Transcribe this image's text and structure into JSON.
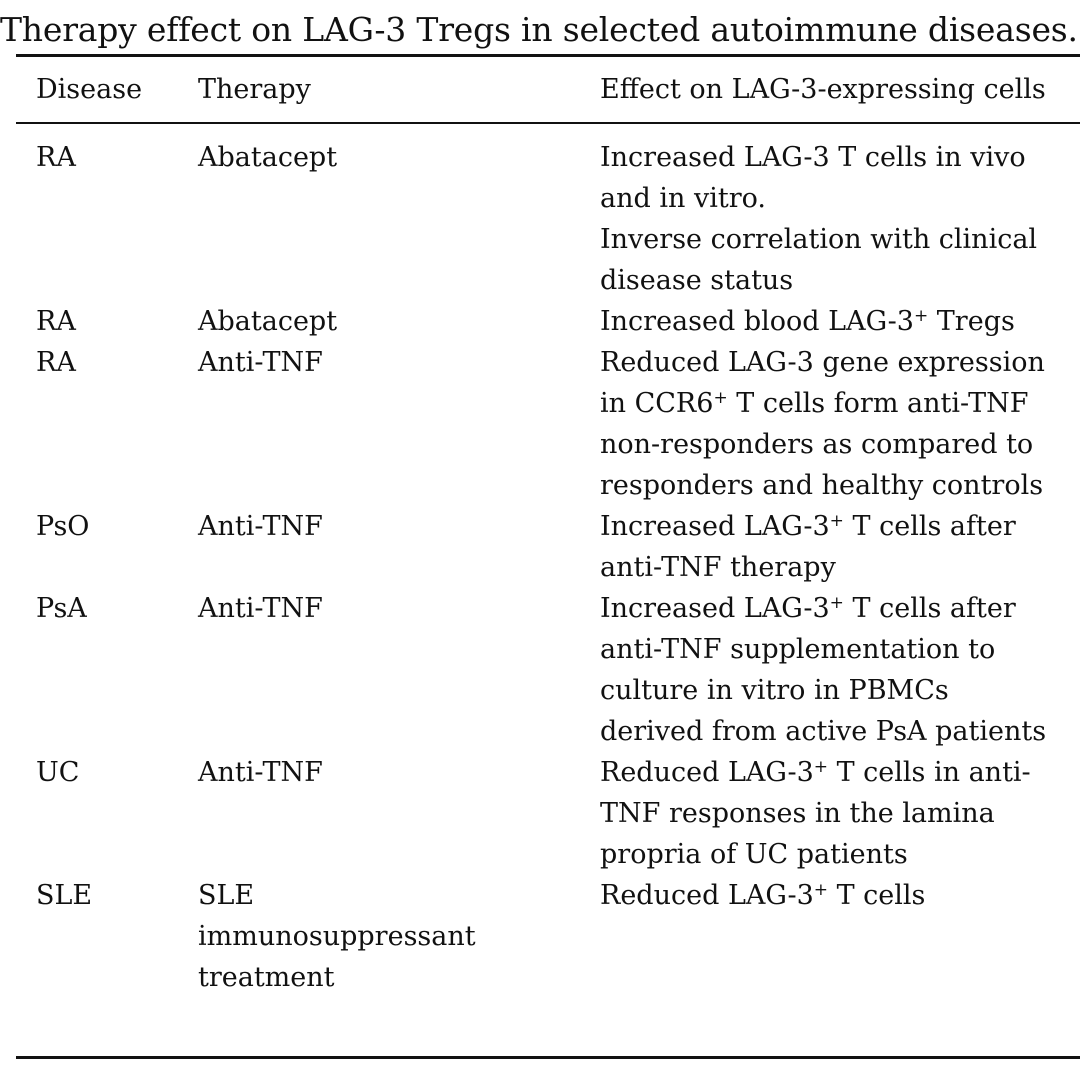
{
  "caption": "Therapy effect on LAG-3 Tregs in selected autoimmune diseases.",
  "columns": {
    "disease": "Disease",
    "therapy": "Therapy",
    "effect": "Effect on LAG-3-expressing cells"
  },
  "rows": [
    {
      "disease": "RA",
      "therapy": "Abatacept",
      "effect_lines": [
        {
          "pre": "Increased LAG-3 T cells in vivo",
          "sup": "",
          "post": ""
        },
        {
          "pre": "and in vitro.",
          "sup": "",
          "post": ""
        },
        {
          "pre": "Inverse correlation with clinical",
          "sup": "",
          "post": ""
        },
        {
          "pre": "disease status",
          "sup": "",
          "post": ""
        }
      ]
    },
    {
      "disease": "RA",
      "therapy": "Abatacept",
      "effect_lines": [
        {
          "pre": "Increased blood LAG-3",
          "sup": "+",
          "post": " Tregs"
        }
      ]
    },
    {
      "disease": "RA",
      "therapy": "Anti-TNF",
      "effect_lines": [
        {
          "pre": "Reduced LAG-3 gene expression",
          "sup": "",
          "post": ""
        },
        {
          "pre": "in CCR6",
          "sup": "+",
          "post": " T cells form anti-TNF"
        },
        {
          "pre": "non-responders as compared to",
          "sup": "",
          "post": ""
        },
        {
          "pre": "responders and healthy controls",
          "sup": "",
          "post": ""
        }
      ]
    },
    {
      "disease": "PsO",
      "therapy": "Anti-TNF",
      "effect_lines": [
        {
          "pre": "Increased LAG-3",
          "sup": "+",
          "post": " T cells after"
        },
        {
          "pre": "anti-TNF therapy",
          "sup": "",
          "post": ""
        }
      ]
    },
    {
      "disease": "PsA",
      "therapy": "Anti-TNF",
      "effect_lines": [
        {
          "pre": "Increased LAG-3",
          "sup": "+",
          "post": " T cells after"
        },
        {
          "pre": "anti-TNF supplementation to",
          "sup": "",
          "post": ""
        },
        {
          "pre": "culture in vitro in PBMCs",
          "sup": "",
          "post": ""
        },
        {
          "pre": "derived from active PsA patients",
          "sup": "",
          "post": ""
        }
      ]
    },
    {
      "disease": "UC",
      "therapy": "Anti-TNF",
      "effect_lines": [
        {
          "pre": "Reduced LAG-3",
          "sup": "+",
          "post": " T cells in anti-"
        },
        {
          "pre": "TNF responses in the lamina",
          "sup": "",
          "post": ""
        },
        {
          "pre": "propria of UC patients",
          "sup": "",
          "post": ""
        }
      ]
    },
    {
      "disease": "SLE",
      "therapy": "SLE\nimmunosuppressant\ntreatment",
      "effect_lines": [
        {
          "pre": "Reduced LAG-3",
          "sup": "+",
          "post": " T cells"
        }
      ]
    }
  ]
}
